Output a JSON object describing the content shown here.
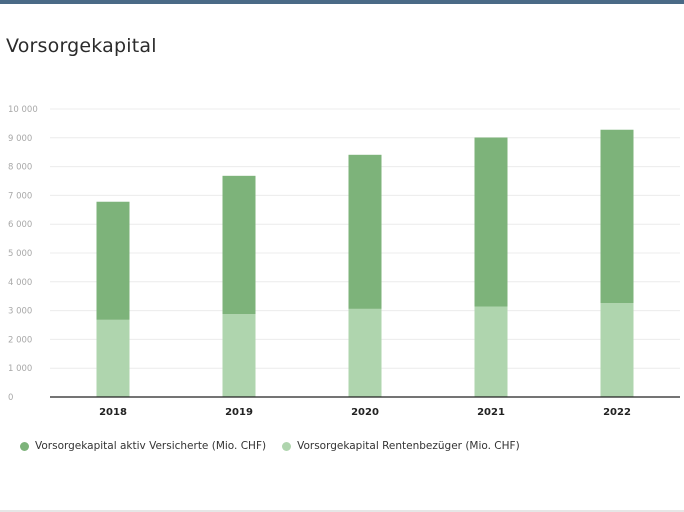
{
  "chart_data": {
    "type": "bar",
    "stacked": true,
    "title": "Vorsorgekapital",
    "categories": [
      "2018",
      "2019",
      "2020",
      "2021",
      "2022"
    ],
    "series": [
      {
        "name": "Vorsorgekapital aktiv Versicherte (Mio. CHF)",
        "color": "#7db37a",
        "values": [
          4100,
          4800,
          5350,
          5870,
          6020
        ]
      },
      {
        "name": "Vorsorgekapital Rentenbezüger (Mio. CHF)",
        "color": "#afd5ae",
        "values": [
          2680,
          2880,
          3060,
          3140,
          3260
        ]
      }
    ],
    "ylim": [
      0,
      10000
    ],
    "yticks": [
      0,
      1000,
      2000,
      3000,
      4000,
      5000,
      6000,
      7000,
      8000,
      9000,
      10000
    ],
    "ytick_labels": [
      "0",
      "1 000",
      "2 000",
      "3 000",
      "4 000",
      "5 000",
      "6 000",
      "7 000",
      "8 000",
      "9 000",
      "10 000"
    ],
    "grid": true,
    "legend_position": "bottom-left"
  }
}
